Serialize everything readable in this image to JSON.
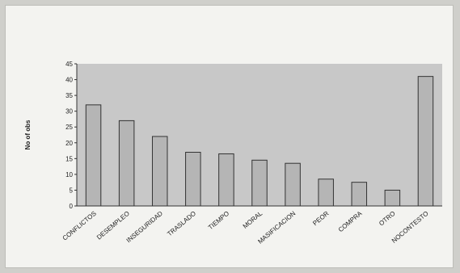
{
  "chart_data": {
    "type": "bar",
    "title": "",
    "xlabel": "",
    "ylabel": "No of obs",
    "ylim": [
      0,
      45
    ],
    "yticks": [
      0,
      5,
      10,
      15,
      20,
      25,
      30,
      35,
      40,
      45
    ],
    "grid": false,
    "categories": [
      "CONFLICTOS",
      "DESEMPLEO",
      "INSEGURIDAD",
      "TRASLADO",
      "TIEMPO",
      "MORAL",
      "MASIFICACION",
      "PEOR",
      "COMPRA",
      "OTRO",
      "NOCONTESTO"
    ],
    "values": [
      32,
      27,
      22,
      17,
      16.5,
      14.5,
      13.5,
      8.5,
      7.5,
      5,
      41
    ],
    "colors": {
      "plot_background": "#c8c8c8",
      "bar_fill": "#b5b5b5",
      "bar_stroke": "#333333",
      "axis": "#333333"
    }
  }
}
